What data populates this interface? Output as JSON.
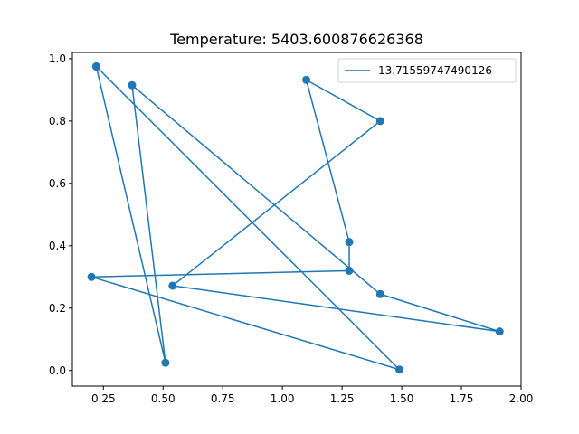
{
  "chart_data": {
    "type": "line",
    "title": "Temperature: 5403.600876626368",
    "xlabel": "",
    "ylabel": "",
    "xlim": [
      0.12,
      2.0
    ],
    "ylim": [
      -0.05,
      1.02
    ],
    "x_ticks": [
      0.25,
      0.5,
      0.75,
      1.0,
      1.25,
      1.5,
      1.75,
      2.0
    ],
    "x_tick_labels": [
      "0.25",
      "0.50",
      "0.75",
      "1.00",
      "1.25",
      "1.50",
      "1.75",
      "2.00"
    ],
    "y_ticks": [
      0.0,
      0.2,
      0.4,
      0.6,
      0.8,
      1.0
    ],
    "y_tick_labels": [
      "0.0",
      "0.2",
      "0.4",
      "0.6",
      "0.8",
      "1.0"
    ],
    "grid": false,
    "legend_position": "top-right",
    "series": [
      {
        "name": "13.71559747490126",
        "color": "#1f77b4",
        "marker": "circle",
        "x": [
          0.22,
          0.51,
          0.37,
          1.41,
          1.91,
          0.54,
          1.41,
          1.1,
          1.28,
          1.28,
          0.2,
          1.49,
          0.22
        ],
        "y": [
          0.975,
          0.025,
          0.915,
          0.245,
          0.125,
          0.272,
          0.8,
          0.932,
          0.412,
          0.32,
          0.3,
          0.003,
          0.975
        ]
      }
    ]
  }
}
